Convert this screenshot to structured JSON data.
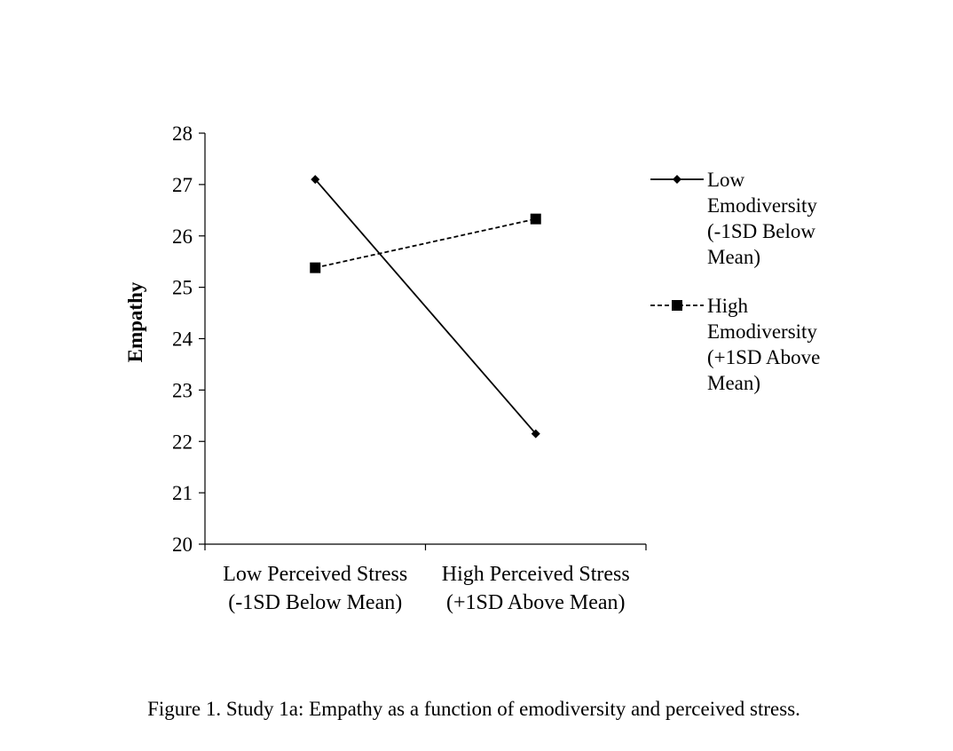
{
  "chart_data": {
    "type": "line",
    "categories": [
      [
        "Low Perceived Stress",
        "(-1SD Below Mean)"
      ],
      [
        "High Perceived Stress",
        "(+1SD Above Mean)"
      ]
    ],
    "xlabel": "",
    "ylabel": "Empathy",
    "ylim": [
      20,
      28
    ],
    "yticks": [
      "20",
      "21",
      "22",
      "23",
      "24",
      "25",
      "26",
      "27",
      "28"
    ],
    "grid": false,
    "legend_position": "right",
    "series": [
      {
        "key": "low",
        "name": [
          "Low",
          "Emodiversity",
          "(-1SD Below",
          "Mean)"
        ],
        "values": [
          27.1,
          22.15
        ],
        "line_style": "solid",
        "marker": "diamond",
        "color": "#000000"
      },
      {
        "key": "high",
        "name": [
          "High",
          "Emodiversity",
          "(+1SD Above",
          "Mean)"
        ],
        "values": [
          25.38,
          26.33
        ],
        "line_style": "dashed",
        "marker": "square",
        "color": "#000000"
      }
    ]
  },
  "caption": "Figure 1. Study 1a: Empathy as a function of emodiversity and perceived stress."
}
